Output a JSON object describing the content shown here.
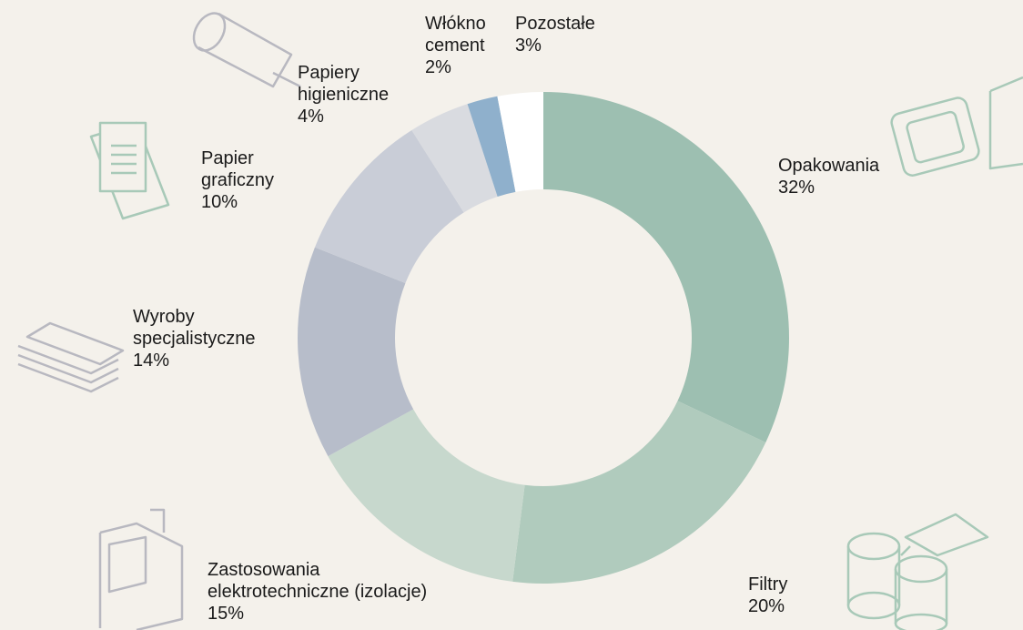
{
  "chart_data": {
    "type": "donut",
    "categories": [
      "Opakowania",
      "Filtry",
      "Zastosowania\nelektrotechniczne (izolacje)",
      "Wyroby\nspecjalistyczne",
      "Papier\ngraficzny",
      "Papiery\nhigieniczne",
      "Włókno\ncement",
      "Pozostałe"
    ],
    "values": [
      32,
      20,
      15,
      14,
      10,
      4,
      2,
      3
    ],
    "value_labels": [
      "32%",
      "20%",
      "15%",
      "14%",
      "10%",
      "4%",
      "2%",
      "3%"
    ],
    "colors": [
      "#9dbfb1",
      "#b0cbbd",
      "#c7d8cd",
      "#b7bdca",
      "#c9cdd7",
      "#d9dbe0",
      "#8fb0cc",
      "#ffffff"
    ]
  }
}
